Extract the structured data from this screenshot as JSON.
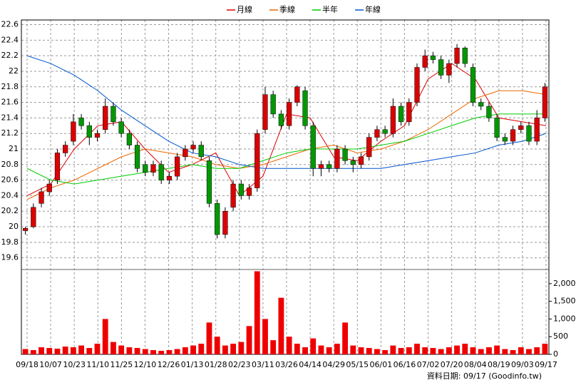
{
  "chart_data": {
    "type": "candlestick",
    "legend": [
      {
        "name": "月線",
        "color": "#dd0000"
      },
      {
        "name": "季線",
        "color": "#ee6600"
      },
      {
        "name": "半年",
        "color": "#00cc00"
      },
      {
        "name": "年線",
        "color": "#0055cc"
      }
    ],
    "x_labels": [
      "09/18",
      "10/07",
      "10/23",
      "11/10",
      "11/25",
      "12/10",
      "12/26",
      "01/13",
      "01/28",
      "02/23",
      "03/11",
      "03/26",
      "04/14",
      "04/29",
      "05/15",
      "06/01",
      "06/16",
      "07/02",
      "07/20",
      "08/04",
      "08/19",
      "09/03",
      "09/17"
    ],
    "up_color": "#dd0000",
    "down_color": "#009900",
    "volume_color": "#ee0000",
    "open": [
      19.95,
      20.0,
      20.3,
      20.45,
      20.6,
      20.95,
      21.1,
      21.4,
      21.3,
      21.15,
      21.25,
      21.55,
      21.35,
      21.2,
      21.05,
      20.8,
      20.7,
      20.8,
      20.6,
      20.65,
      20.9,
      21.0,
      21.05,
      20.85,
      20.3,
      19.9,
      20.25,
      20.55,
      20.4,
      20.5,
      21.25,
      21.7,
      21.45,
      21.3,
      21.6,
      21.75,
      21.3,
      20.75,
      20.8,
      20.75,
      21.0,
      20.85,
      20.8,
      20.9,
      21.15,
      21.25,
      21.2,
      21.55,
      21.35,
      21.6,
      22.05,
      22.2,
      22.15,
      21.95,
      22.1,
      22.3,
      22.05,
      21.6,
      21.55,
      21.4,
      21.15,
      21.1,
      21.25,
      21.3,
      21.1,
      21.4
    ],
    "high": [
      20.0,
      20.3,
      20.5,
      20.6,
      21.0,
      21.1,
      21.45,
      21.45,
      21.35,
      21.25,
      21.65,
      21.6,
      21.4,
      21.25,
      21.1,
      20.85,
      20.85,
      20.85,
      20.7,
      20.95,
      21.05,
      21.1,
      21.1,
      20.9,
      20.35,
      20.25,
      20.6,
      20.6,
      20.55,
      21.25,
      21.8,
      21.75,
      21.5,
      21.65,
      21.82,
      21.8,
      21.35,
      20.85,
      20.85,
      21.05,
      21.05,
      20.9,
      20.95,
      21.2,
      21.3,
      21.3,
      21.65,
      21.6,
      21.65,
      22.1,
      22.28,
      22.25,
      22.2,
      22.15,
      22.35,
      22.32,
      22.1,
      21.65,
      21.6,
      21.45,
      21.2,
      21.3,
      21.35,
      21.35,
      21.5,
      21.85
    ],
    "low": [
      19.9,
      19.98,
      20.25,
      20.4,
      20.55,
      20.9,
      21.05,
      21.25,
      21.05,
      21.1,
      21.2,
      21.3,
      21.15,
      21.0,
      20.7,
      20.65,
      20.65,
      20.55,
      20.55,
      20.6,
      20.85,
      20.95,
      20.85,
      20.25,
      19.85,
      19.85,
      20.2,
      20.35,
      20.35,
      20.45,
      21.2,
      21.4,
      21.25,
      21.25,
      21.55,
      21.25,
      20.65,
      20.65,
      20.7,
      20.7,
      20.8,
      20.7,
      20.75,
      20.85,
      21.1,
      21.15,
      21.15,
      21.3,
      21.3,
      21.55,
      22.0,
      22.1,
      21.9,
      21.85,
      22.05,
      22.05,
      21.55,
      21.5,
      21.35,
      21.1,
      21.05,
      21.05,
      21.2,
      21.05,
      21.05,
      21.35
    ],
    "close": [
      19.98,
      20.25,
      20.45,
      20.55,
      20.95,
      21.05,
      21.35,
      21.3,
      21.15,
      21.2,
      21.55,
      21.35,
      21.2,
      21.05,
      20.75,
      20.7,
      20.8,
      20.6,
      20.65,
      20.9,
      21.0,
      21.05,
      20.9,
      20.3,
      19.9,
      20.2,
      20.55,
      20.4,
      20.5,
      21.2,
      21.7,
      21.45,
      21.3,
      21.6,
      21.8,
      21.3,
      20.75,
      20.8,
      20.75,
      21.0,
      20.85,
      20.8,
      20.9,
      21.15,
      21.25,
      21.2,
      21.55,
      21.35,
      21.6,
      22.05,
      22.2,
      22.15,
      21.95,
      22.1,
      22.3,
      22.1,
      21.6,
      21.55,
      21.4,
      21.15,
      21.1,
      21.25,
      21.3,
      21.1,
      21.4,
      21.8
    ],
    "volume": [
      150,
      120,
      200,
      180,
      160,
      220,
      200,
      250,
      180,
      300,
      1000,
      350,
      250,
      200,
      180,
      150,
      120,
      100,
      120,
      150,
      200,
      250,
      300,
      900,
      500,
      250,
      300,
      350,
      800,
      2350,
      1000,
      400,
      1600,
      500,
      300,
      200,
      450,
      250,
      200,
      300,
      900,
      250,
      200,
      180,
      150,
      120,
      250,
      180,
      200,
      300,
      200,
      180,
      150,
      200,
      250,
      300,
      200,
      150,
      200,
      250,
      150,
      120,
      200,
      150,
      200,
      300
    ],
    "moving_averages": [
      {
        "name": "月線",
        "color": "#dd0000",
        "values": [
          20.4,
          20.55,
          21.0,
          21.3,
          21.35,
          21.0,
          20.7,
          20.8,
          20.95,
          20.4,
          20.65,
          21.45,
          21.4,
          20.9,
          20.85,
          21.1,
          21.3,
          21.9,
          22.1,
          21.9,
          21.4,
          21.35,
          21.3
        ]
      },
      {
        "name": "季線",
        "color": "#ee6600",
        "values": [
          20.35,
          20.5,
          20.6,
          20.75,
          20.9,
          21.0,
          20.95,
          20.9,
          20.8,
          20.75,
          20.8,
          20.9,
          21.0,
          21.05,
          20.95,
          21.0,
          21.1,
          21.25,
          21.45,
          21.65,
          21.75,
          21.75,
          21.7
        ]
      },
      {
        "name": "半年",
        "color": "#00cc00",
        "values": [
          20.75,
          20.6,
          20.55,
          20.6,
          20.65,
          20.7,
          20.75,
          20.8,
          20.75,
          20.75,
          20.85,
          20.95,
          21.0,
          21.0,
          21.0,
          21.05,
          21.1,
          21.2,
          21.3,
          21.4,
          21.45,
          21.45,
          21.45
        ]
      },
      {
        "name": "年線",
        "color": "#0055cc",
        "values": [
          22.2,
          22.1,
          21.95,
          21.75,
          21.5,
          21.3,
          21.1,
          20.95,
          20.9,
          20.8,
          20.75,
          20.75,
          20.75,
          20.75,
          20.75,
          20.75,
          20.8,
          20.85,
          20.9,
          20.95,
          21.05,
          21.1,
          21.2
        ]
      }
    ],
    "ylim": [
      19.45,
      22.66
    ],
    "yticks": [
      19.6,
      19.8,
      20,
      20.2,
      20.4,
      20.6,
      20.8,
      21,
      21.2,
      21.4,
      21.6,
      21.8,
      22,
      22.2,
      22.4,
      22.6
    ],
    "y2lim": [
      0,
      2400
    ],
    "y2ticks": [
      0,
      500,
      {
        "value": 1000,
        "label": "1,000"
      },
      {
        "value": 1500,
        "label": "1,500"
      },
      {
        "value": 2000,
        "label": "2,000"
      }
    ],
    "grid": true,
    "footer": "資料日期: 09/17 (Goodinfo.tw)"
  }
}
